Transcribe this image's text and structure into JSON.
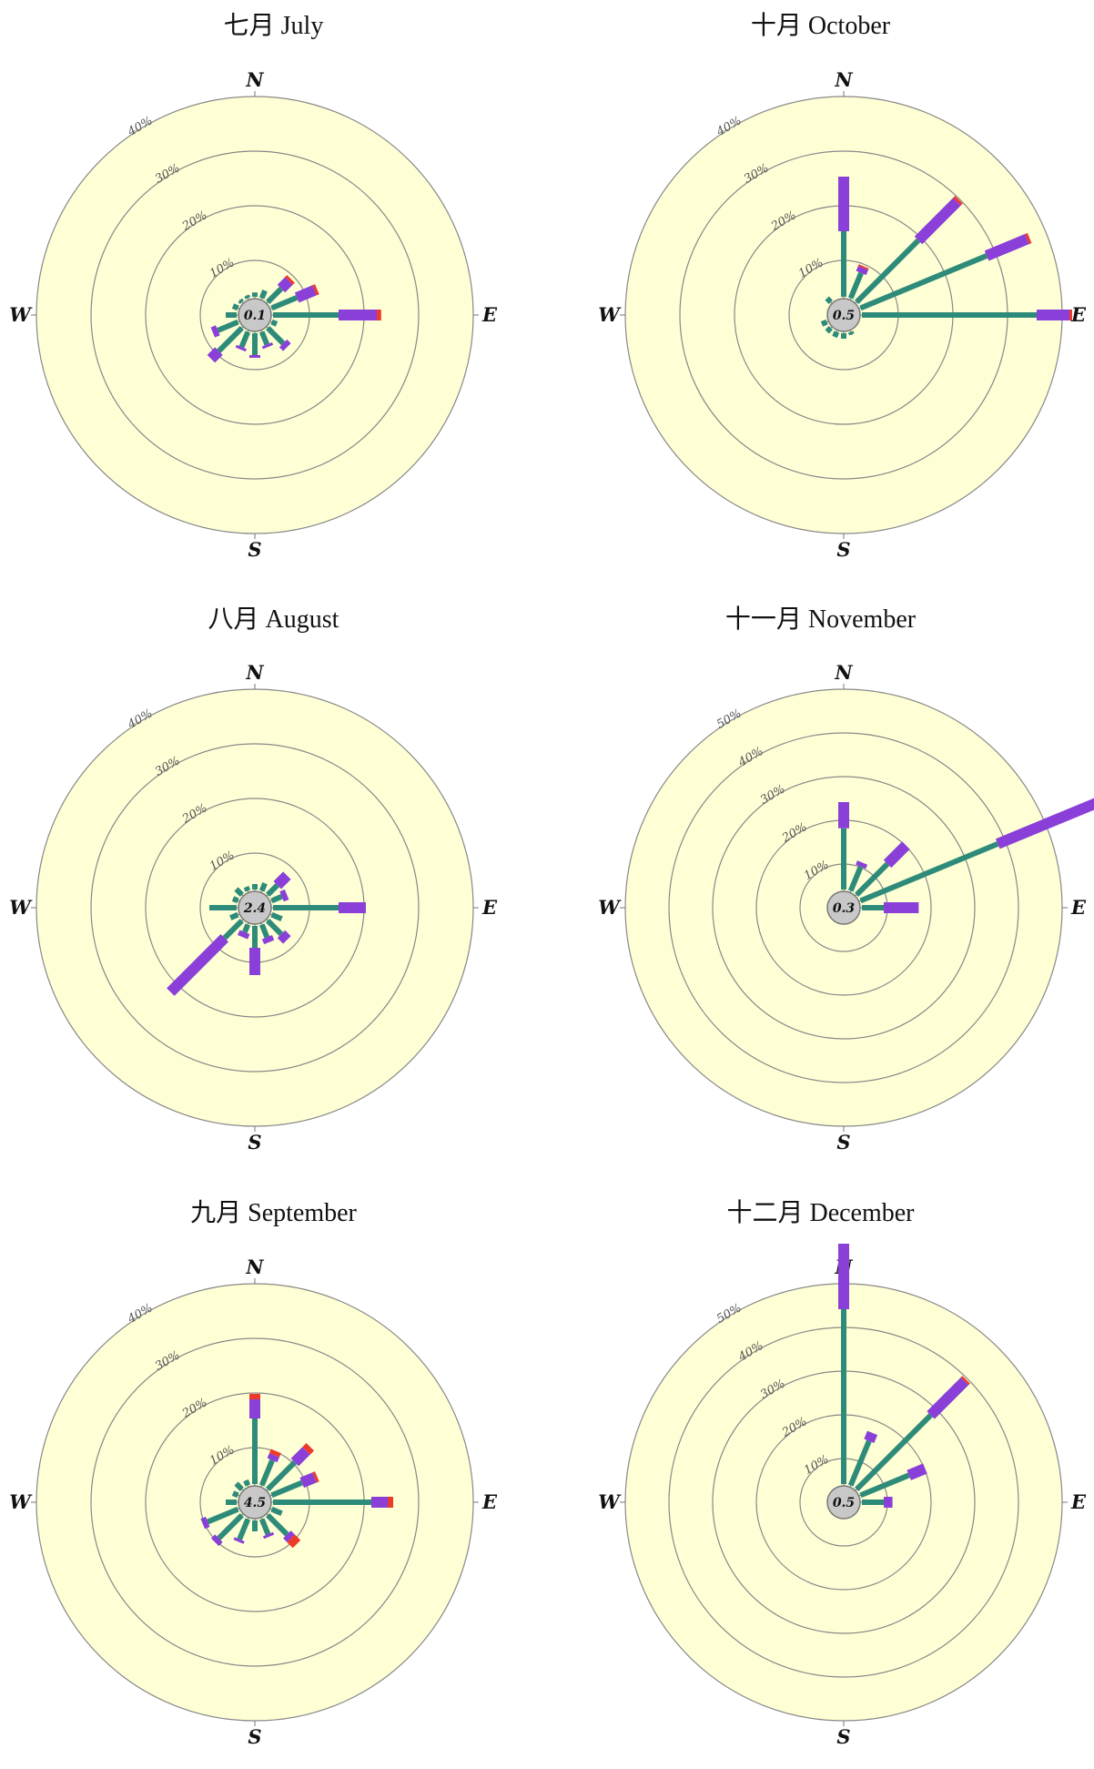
{
  "charts": [
    {
      "title": "七月 July",
      "calm": "0.1",
      "rmax": 40,
      "ring_labels": [
        "10%",
        "20%",
        "30%",
        "40%"
      ]
    },
    {
      "title": "十月 October",
      "calm": "0.5",
      "rmax": 40,
      "ring_labels": [
        "10%",
        "20%",
        "30%",
        "40%"
      ]
    },
    {
      "title": "八月 August",
      "calm": "2.4",
      "rmax": 40,
      "ring_labels": [
        "10%",
        "20%",
        "30%",
        "40%"
      ]
    },
    {
      "title": "十一月 November",
      "calm": "0.3",
      "rmax": 50,
      "ring_labels": [
        "10%",
        "20%",
        "30%",
        "40%",
        "50%"
      ]
    },
    {
      "title": "九月 September",
      "calm": "4.5",
      "rmax": 40,
      "ring_labels": [
        "10%",
        "20%",
        "30%",
        "40%"
      ]
    },
    {
      "title": "十二月 December",
      "calm": "0.5",
      "rmax": 50,
      "ring_labels": [
        "10%",
        "20%",
        "30%",
        "40%",
        "50%"
      ]
    }
  ],
  "cardinals": {
    "n": "N",
    "e": "E",
    "s": "S",
    "w": "W"
  },
  "colors": {
    "background": "#ffffd6",
    "ring": "#888888",
    "calm_circle": "#c8c8c8",
    "bin1": "#2e8b7a",
    "bin2": "#8a3fd8",
    "bin3": "#ee3a2a"
  },
  "chart_data": [
    {
      "type": "wind-rose",
      "title": "七月 July",
      "calm": 0.1,
      "rmax": 40,
      "directions": [
        "N",
        "NNE",
        "NE",
        "ENE",
        "E",
        "ESE",
        "SE",
        "SSE",
        "S",
        "SSW",
        "SW",
        "WSW",
        "W",
        "WNW",
        "NW",
        "NNW"
      ],
      "series": [
        {
          "values": [
            0.8,
            1.5,
            3.5,
            5,
            12,
            1,
            4,
            2.5,
            4,
            3,
            6,
            4,
            2,
            1,
            0.5,
            0.5
          ]
        },
        {
          "values": [
            0,
            0,
            2,
            3.5,
            7,
            0,
            1,
            0.5,
            0.5,
            0.5,
            2,
            1,
            0,
            0,
            0,
            0
          ]
        },
        {
          "values": [
            0,
            0,
            0.5,
            0.5,
            0.8,
            0,
            0,
            0,
            0,
            0,
            0,
            0,
            0,
            0,
            0,
            0
          ]
        }
      ]
    },
    {
      "type": "wind-rose",
      "title": "十月 October",
      "calm": 0.5,
      "rmax": 40,
      "directions": [
        "N",
        "NNE",
        "NE",
        "ENE",
        "E",
        "ESE",
        "SE",
        "SSE",
        "S",
        "SSW",
        "SW",
        "WSW",
        "W",
        "WNW",
        "NW",
        "NNW"
      ],
      "series": [
        {
          "values": [
            12,
            5,
            16,
            25,
            32,
            0,
            0,
            0.5,
            1,
            1,
            1,
            1,
            0,
            0,
            1,
            0
          ]
        },
        {
          "values": [
            10,
            1,
            10,
            8,
            6,
            0,
            0,
            0,
            0,
            0,
            0,
            0,
            0,
            0,
            0,
            0
          ]
        },
        {
          "values": [
            0,
            0.3,
            0.5,
            0.5,
            0.5,
            0,
            0,
            0,
            0,
            0,
            0,
            0,
            0,
            0,
            0,
            0
          ]
        }
      ]
    },
    {
      "type": "wind-rose",
      "title": "八月 August",
      "calm": 2.4,
      "rmax": 40,
      "directions": [
        "N",
        "NNE",
        "NE",
        "ENE",
        "E",
        "ESE",
        "SE",
        "SSE",
        "S",
        "SSW",
        "SW",
        "WSW",
        "W",
        "WNW",
        "NW",
        "NNW"
      ],
      "series": [
        {
          "values": [
            1,
            1.5,
            2.5,
            2,
            12,
            2,
            3.5,
            2.5,
            4,
            1.5,
            4.5,
            1.5,
            5,
            1,
            1.5,
            0.8
          ]
        },
        {
          "values": [
            0,
            0,
            2.5,
            1,
            5,
            0,
            1.5,
            1,
            5,
            1,
            14,
            0,
            0,
            0,
            0,
            0
          ]
        },
        {
          "values": [
            0,
            0,
            0,
            0,
            0,
            0,
            0,
            0,
            0,
            0,
            0,
            0,
            0,
            0,
            0,
            0
          ]
        }
      ]
    },
    {
      "type": "wind-rose",
      "title": "十一月 November",
      "calm": 0.3,
      "rmax": 50,
      "directions": [
        "N",
        "NNE",
        "NE",
        "ENE",
        "E",
        "ESE",
        "SE",
        "SSE",
        "S",
        "SSW",
        "SW",
        "WSW",
        "W",
        "WNW",
        "NW",
        "NNW"
      ],
      "series": [
        {
          "values": [
            14,
            6,
            10,
            34,
            5,
            0,
            0,
            0,
            0,
            0,
            0,
            0,
            0,
            0,
            0,
            0
          ]
        },
        {
          "values": [
            6,
            1,
            6,
            25,
            8,
            0,
            0,
            0,
            0,
            0,
            0,
            0,
            0,
            0,
            0,
            0
          ]
        },
        {
          "values": [
            0,
            0,
            0,
            0,
            0,
            0,
            0,
            0,
            0,
            0,
            0,
            0,
            0,
            0,
            0,
            0
          ]
        }
      ]
    },
    {
      "type": "wind-rose",
      "title": "九月 September",
      "calm": 4.5,
      "rmax": 40,
      "directions": [
        "N",
        "NNE",
        "NE",
        "ENE",
        "E",
        "ESE",
        "SE",
        "SSE",
        "S",
        "SSW",
        "SW",
        "WSW",
        "W",
        "WNW",
        "NW",
        "NNW"
      ],
      "series": [
        {
          "values": [
            12,
            5,
            7,
            6,
            18,
            2,
            5,
            3,
            2,
            4,
            6,
            6,
            2,
            1,
            1.5,
            1
          ]
        },
        {
          "values": [
            3.5,
            1,
            3,
            2.5,
            3,
            0,
            1,
            0.5,
            0,
            0.5,
            1,
            1,
            0,
            0,
            0,
            0
          ]
        },
        {
          "values": [
            1,
            0.8,
            1,
            0.5,
            1,
            0,
            1.5,
            0,
            0,
            0,
            0,
            0,
            0,
            0,
            0,
            0
          ]
        }
      ]
    },
    {
      "type": "wind-rose",
      "title": "十二月 December",
      "calm": 0.5,
      "rmax": 50,
      "directions": [
        "N",
        "NNE",
        "NE",
        "ENE",
        "E",
        "ESE",
        "SE",
        "SSE",
        "S",
        "SSW",
        "SW",
        "WSW",
        "W",
        "WNW",
        "NW",
        "NNW"
      ],
      "series": [
        {
          "values": [
            40,
            11,
            24,
            12,
            5,
            0,
            0,
            0,
            0,
            0,
            0,
            0,
            0,
            0,
            0,
            0
          ]
        },
        {
          "values": [
            15,
            2,
            11,
            4,
            2,
            0,
            0,
            0,
            0,
            0,
            0,
            0,
            0,
            0,
            0,
            0
          ]
        },
        {
          "values": [
            0,
            0,
            0.5,
            0,
            0,
            0,
            0,
            0,
            0,
            0,
            0,
            0,
            0,
            0,
            0,
            0
          ]
        }
      ]
    }
  ]
}
